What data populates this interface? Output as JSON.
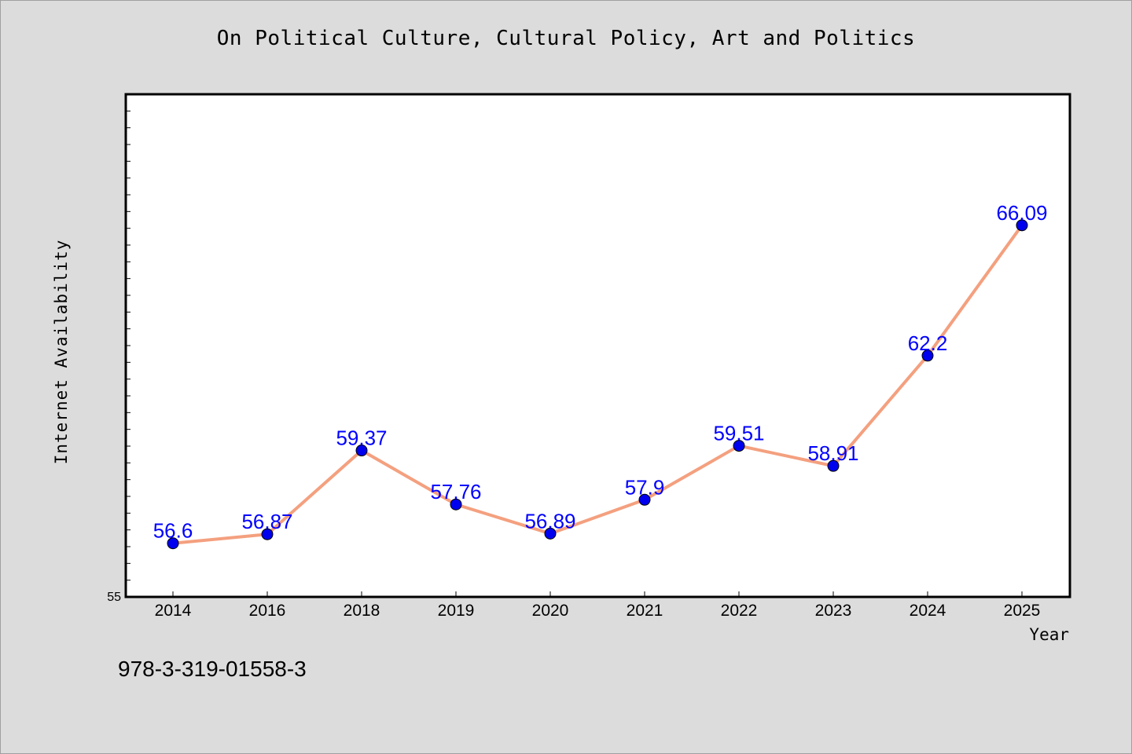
{
  "chart_data": {
    "type": "line",
    "title": "On Political Culture, Cultural Policy, Art and Politics",
    "xlabel": "Year",
    "ylabel": "Internet Availability",
    "categories": [
      "2014",
      "2016",
      "2018",
      "2019",
      "2020",
      "2021",
      "2022",
      "2023",
      "2024",
      "2025"
    ],
    "series": [
      {
        "values": [
          56.6,
          56.87,
          59.37,
          57.76,
          56.89,
          57.9,
          59.51,
          58.91,
          62.2,
          66.09
        ],
        "data_labels": [
          "56.6",
          "56.87",
          "59.37",
          "57.76",
          "56.89",
          "57.9",
          "59.51",
          "58.91",
          "62.2",
          "66.09"
        ]
      }
    ],
    "ylim": [
      55,
      70
    ],
    "y_tick_labels": [
      "55"
    ],
    "grid": false,
    "colors": {
      "line": "#f4a07f",
      "marker": "#0000ee",
      "data_label": "#0000ff",
      "plot_background": "#ffffff",
      "page_background": "#dcdcdc"
    }
  },
  "footer": {
    "code": "978-3-319-01558-3"
  }
}
